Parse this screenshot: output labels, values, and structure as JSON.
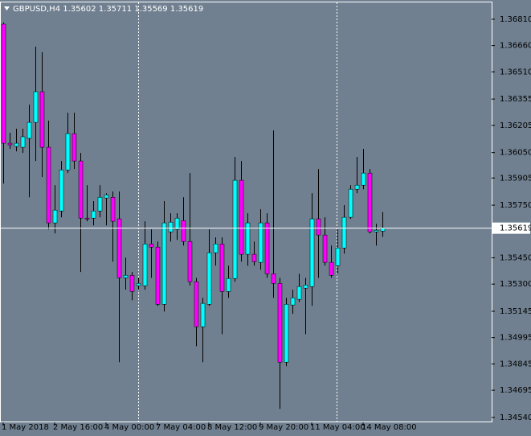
{
  "chart_data": {
    "type": "candlestick",
    "title": "GBPUSD,H4 1.35602 1.35711 1.35569 1.35619",
    "up_color": "#00ffff",
    "down_color": "#ff00ff",
    "wick_color": "#000000",
    "background": "#708090",
    "categories": [
      "1 May 2018",
      null,
      null,
      null,
      null,
      null,
      null,
      null,
      "2 May 16:00",
      null,
      null,
      null,
      null,
      null,
      null,
      null,
      "4 May 00:00",
      null,
      null,
      null,
      null,
      null,
      null,
      null,
      "7 May 04:00",
      null,
      null,
      null,
      null,
      null,
      null,
      null,
      "8 May 12:00",
      null,
      null,
      null,
      null,
      null,
      null,
      null,
      "9 May 20:00",
      null,
      null,
      null,
      null,
      null,
      null,
      null,
      "11 May 04:00",
      null,
      null,
      null,
      null,
      null,
      null,
      null,
      "14 May 08:00",
      null,
      null,
      null
    ],
    "open": [
      1.36782,
      1.36103,
      1.36085,
      1.3608,
      1.36131,
      1.36222,
      1.36397,
      1.3608,
      1.35649,
      1.35717,
      1.35951,
      1.36158,
      1.36002,
      1.35676,
      1.35676,
      1.35717,
      1.35791,
      1.35795,
      1.35672,
      1.35336,
      1.3535,
      1.35291,
      1.35291,
      1.35529,
      1.35511,
      1.35185,
      1.35598,
      1.35612,
      1.35662,
      1.35543,
      1.35314,
      1.35057,
      1.35185,
      1.35479,
      1.35529,
      1.35258,
      1.35332,
      1.35892,
      1.3547,
      1.3547,
      1.35424,
      1.35649,
      1.35359,
      1.35304,
      1.34855,
      1.35181,
      1.35213,
      1.35277,
      1.35286,
      1.35672,
      1.3558,
      1.35424,
      1.35405,
      1.35506,
      1.35681,
      1.35841,
      1.35864,
      1.35933,
      1.35598,
      1.35602
    ],
    "high": [
      1.36791,
      1.36163,
      1.36186,
      1.36186,
      1.36323,
      1.36654,
      1.36622,
      1.36232,
      1.35864,
      1.36002,
      1.36277,
      1.36277,
      1.36048,
      1.35864,
      1.35773,
      1.35864,
      1.35818,
      1.35828,
      1.35828,
      1.35451,
      1.35369,
      1.35336,
      1.35658,
      1.35612,
      1.35543,
      1.35773,
      1.35704,
      1.35704,
      1.35795,
      1.35933,
      1.35336,
      1.35222,
      1.35612,
      1.35566,
      1.35566,
      1.35405,
      1.36025,
      1.36002,
      1.35704,
      1.35543,
      1.35727,
      1.35704,
      1.36176,
      1.35336,
      1.35222,
      1.35268,
      1.35359,
      1.35336,
      1.35818,
      1.35956,
      1.35681,
      1.3552,
      1.35612,
      1.3575,
      1.35864,
      1.36025,
      1.36071,
      1.35956,
      1.35644,
      1.35711
    ],
    "low": [
      1.35873,
      1.36071,
      1.36057,
      1.36048,
      1.35795,
      1.36002,
      1.3591,
      1.35612,
      1.35589,
      1.35681,
      1.35933,
      1.35956,
      1.35369,
      1.35658,
      1.35635,
      1.35681,
      1.35635,
      1.35428,
      1.34855,
      1.35268,
      1.35208,
      1.35268,
      1.35268,
      1.35336,
      1.35176,
      1.35144,
      1.35543,
      1.35552,
      1.3552,
      1.35291,
      1.34946,
      1.34855,
      1.35176,
      1.35405,
      1.35015,
      1.35222,
      1.35314,
      1.35428,
      1.35405,
      1.35405,
      1.35382,
      1.35336,
      1.35222,
      1.34588,
      1.34832,
      1.3513,
      1.35199,
      1.35015,
      1.35176,
      1.35336,
      1.35405,
      1.35336,
      1.35359,
      1.35474,
      1.35672,
      1.35818,
      1.35841,
      1.35589,
      1.3552,
      1.35569
    ],
    "close": [
      1.36103,
      1.36094,
      1.36103,
      1.3614,
      1.36222,
      1.36397,
      1.3608,
      1.35649,
      1.35722,
      1.35951,
      1.36158,
      1.36002,
      1.35676,
      1.35672,
      1.35717,
      1.35795,
      1.35809,
      1.35658,
      1.35336,
      1.3535,
      1.35258,
      1.35304,
      1.35529,
      1.35511,
      1.35185,
      1.35649,
      1.35653,
      1.35676,
      1.35543,
      1.35314,
      1.35057,
      1.3519,
      1.35479,
      1.35529,
      1.35258,
      1.35332,
      1.35892,
      1.3547,
      1.35649,
      1.35428,
      1.35649,
      1.35359,
      1.35304,
      1.34855,
      1.35185,
      1.35222,
      1.35286,
      1.35295,
      1.35672,
      1.3558,
      1.35424,
      1.3535,
      1.35506,
      1.35681,
      1.35841,
      1.35864,
      1.35933,
      1.35598,
      1.35607,
      1.35619
    ],
    "current_price": 1.35619,
    "ylim": [
      1.34512,
      1.36906
    ],
    "yticks": [
      {
        "value": 1.3681,
        "label": "1.36810"
      },
      {
        "value": 1.3666,
        "label": "1.36660"
      },
      {
        "value": 1.3651,
        "label": "1.36510"
      },
      {
        "value": 1.36355,
        "label": "1.36355"
      },
      {
        "value": 1.36205,
        "label": "1.36205"
      },
      {
        "value": 1.3605,
        "label": "1.36050"
      },
      {
        "value": 1.35905,
        "label": "1.35905"
      },
      {
        "value": 1.3575,
        "label": "1.35750"
      },
      {
        "value": 1.3545,
        "label": "1.35450"
      },
      {
        "value": 1.353,
        "label": "1.35300"
      },
      {
        "value": 1.35145,
        "label": "1.35145"
      },
      {
        "value": 1.34995,
        "label": "1.34995"
      },
      {
        "value": 1.34845,
        "label": "1.34845"
      },
      {
        "value": 1.34695,
        "label": "1.34695"
      },
      {
        "value": 1.3454,
        "label": "1.34540"
      }
    ]
  }
}
